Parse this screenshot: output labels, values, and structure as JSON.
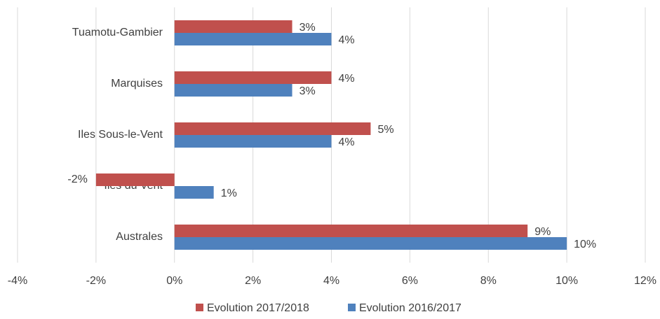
{
  "chart_data": {
    "type": "hbar",
    "categories": [
      "Tuamotu-Gambier",
      "Marquises",
      "Iles Sous-le-Vent",
      "Iles du Vent",
      "Australes"
    ],
    "series": [
      {
        "name": "Evolution 2017/2018",
        "color": "#c0504d",
        "values": [
          3,
          4,
          5,
          -2,
          9
        ],
        "value_labels": [
          "3%",
          "4%",
          "5%",
          "-2%",
          "9%"
        ]
      },
      {
        "name": "Evolution 2016/2017",
        "color": "#4f81bd",
        "values": [
          4,
          3,
          4,
          1,
          10
        ],
        "value_labels": [
          "4%",
          "3%",
          "4%",
          "1%",
          "10%"
        ]
      }
    ],
    "xlim": [
      -4,
      12
    ],
    "xticks": [
      {
        "value": -4,
        "label": "-4%"
      },
      {
        "value": -2,
        "label": "-2%"
      },
      {
        "value": 0,
        "label": "0%"
      },
      {
        "value": 2,
        "label": "2%"
      },
      {
        "value": 4,
        "label": "4%"
      },
      {
        "value": 6,
        "label": "6%"
      },
      {
        "value": 8,
        "label": "8%"
      },
      {
        "value": 10,
        "label": "10%"
      },
      {
        "value": 12,
        "label": "12%"
      }
    ],
    "grid": true,
    "legend": "bottom"
  }
}
